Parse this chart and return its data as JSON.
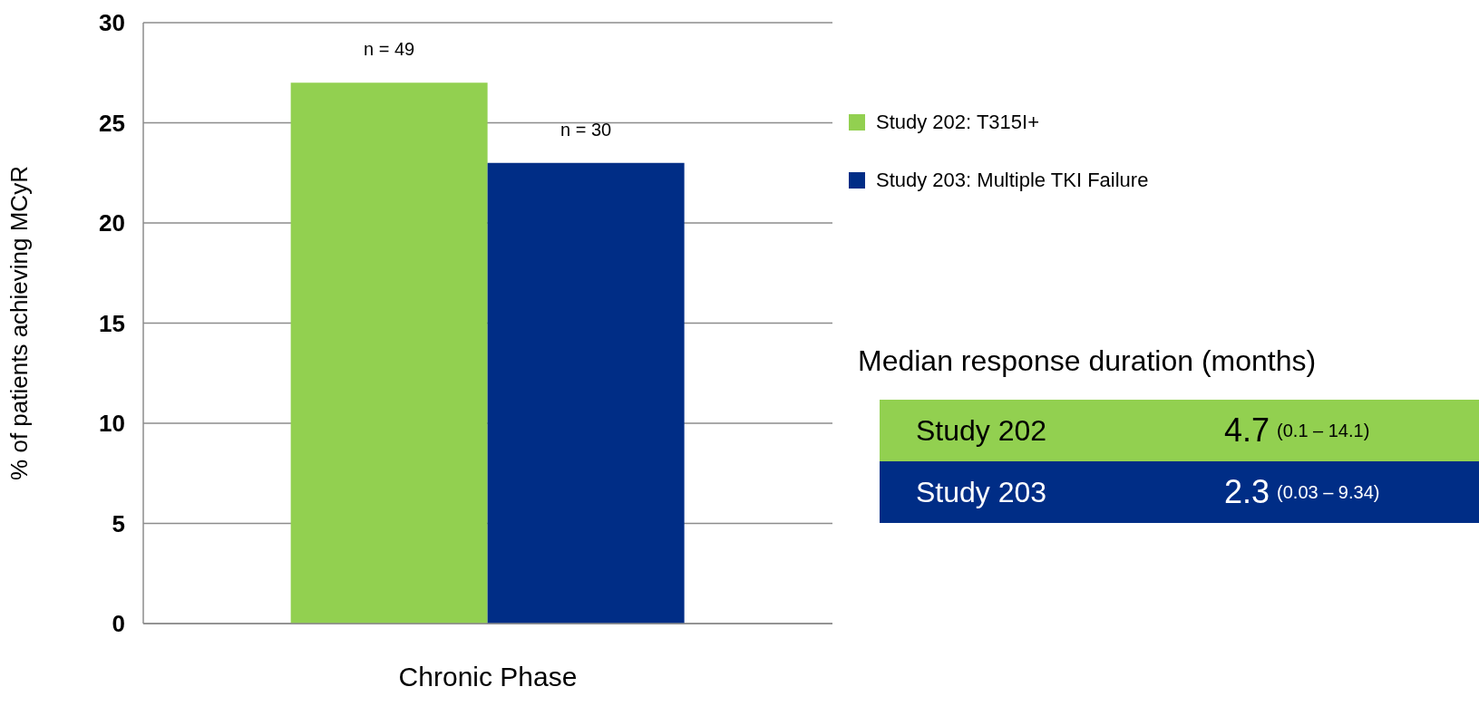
{
  "chart_data": {
    "type": "bar",
    "ylabel": "%  of patients achieving MCyR",
    "categories": [
      "Chronic Phase"
    ],
    "series": [
      {
        "name": "Study 202: T315I+",
        "color": "#92d050",
        "values": [
          27
        ]
      },
      {
        "name": "Study 203: Multiple TKI Failure",
        "color": "#002d86",
        "values": [
          23
        ]
      }
    ],
    "ylim": [
      0,
      30
    ],
    "yticks": [
      0,
      5,
      10,
      15,
      20,
      25,
      30
    ],
    "grid": "y",
    "legend": "right",
    "annotations": [
      "n = 49",
      "n = 30",
      "Median response duration (months)",
      "Study 202",
      "4.7",
      "(0.1 – 14.1)",
      "Study 203",
      "2.3",
      "(0.03 – 9.34)"
    ]
  }
}
